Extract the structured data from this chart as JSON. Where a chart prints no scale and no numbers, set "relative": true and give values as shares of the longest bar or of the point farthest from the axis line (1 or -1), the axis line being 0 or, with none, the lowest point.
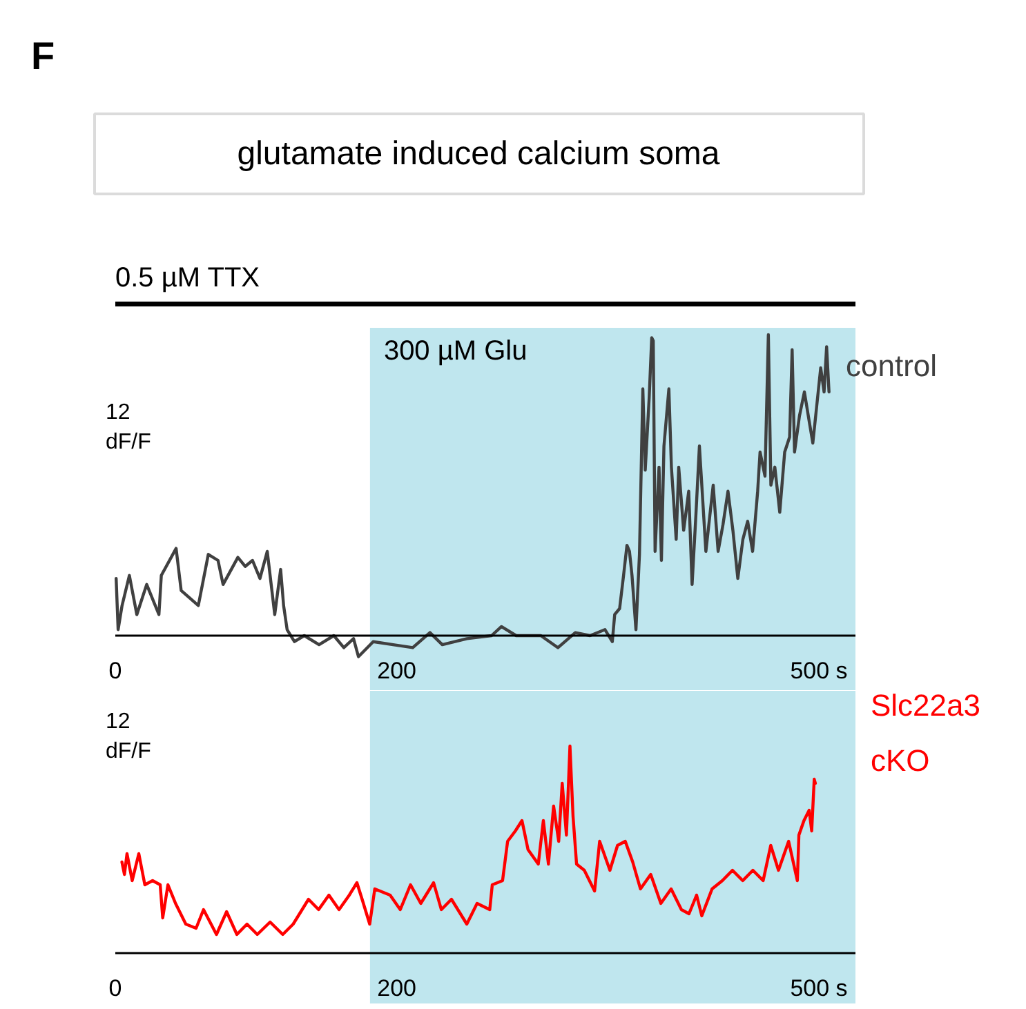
{
  "chart_data": [
    {
      "type": "line",
      "title": "glutamate induced calcium soma",
      "relative": true,
      "xlim": [
        0,
        526
      ],
      "xticks": [
        0,
        200,
        {
          "value": 500,
          "label": "500 s"
        }
      ],
      "annotations": [
        "F",
        "12 dF/F",
        "0.5 µM TTX"
      ],
      "bands": [
        {
          "axis": "x",
          "from": 181,
          "to": 526,
          "label": "300 µM Glu",
          "color": "#bfe6ee"
        }
      ],
      "series": [
        {
          "name": "control",
          "color": "#404040",
          "x": [
            0.6,
            2.0,
            4.8,
            10.0,
            15.3,
            22.3,
            31.0,
            32.7,
            43.2,
            46.8,
            59.0,
            66.1,
            73.0,
            76.6,
            87.1,
            92.3,
            97.5,
            102.8,
            108.0,
            113.3,
            117.5,
            119.6,
            122.1,
            127.3,
            134.3,
            144.8,
            155.3,
            162.4,
            169.3,
            172.8,
            183.3,
            197.4,
            211.4,
            223.6,
            232.4,
            249.9,
            267.4,
            274.4,
            284.9,
            302.4,
            314.6,
            326.9,
            337.4,
            348.0,
            353.2,
            354.9,
            358.4,
            361.2,
            363.6,
            365.4,
            367.2,
            370.0,
            372.5,
            374.9,
            376.6,
            379.4,
            381.2,
            382.3,
            383.6,
            386.4,
            388.1,
            389.9,
            393.4,
            395.2,
            398.6,
            400.4,
            403.9,
            407.5,
            409.9,
            412.6,
            415.1,
            419.7,
            424.9,
            428.4,
            431.9,
            435.4,
            438.9,
            442.4,
            446.0,
            449.4,
            452.9,
            456.5,
            458.2,
            461.7,
            464.1,
            465.9,
            468.7,
            472.2,
            475.7,
            479.2,
            481.0,
            482.7,
            486.2,
            489.7,
            493.2,
            495.7,
            498.4,
            501.3,
            503.7,
            505.5,
            507.2
          ],
          "values": [
            0.19,
            0.02,
            0.1,
            0.2,
            0.07,
            0.17,
            0.07,
            0.2,
            0.29,
            0.15,
            0.1,
            0.27,
            0.25,
            0.17,
            0.26,
            0.23,
            0.25,
            0.19,
            0.28,
            0.07,
            0.22,
            0.1,
            0.02,
            -0.02,
            0.0,
            -0.03,
            0.0,
            -0.04,
            -0.01,
            -0.07,
            -0.02,
            -0.03,
            -0.04,
            0.01,
            -0.03,
            -0.01,
            0.0,
            0.03,
            0.0,
            0.0,
            -0.04,
            0.01,
            0.0,
            0.02,
            -0.02,
            0.07,
            0.09,
            0.2,
            0.3,
            0.28,
            0.2,
            0.02,
            0.27,
            0.82,
            0.55,
            0.79,
            0.99,
            0.98,
            0.28,
            0.56,
            0.25,
            0.63,
            0.82,
            0.56,
            0.32,
            0.56,
            0.35,
            0.48,
            0.17,
            0.4,
            0.63,
            0.28,
            0.5,
            0.28,
            0.37,
            0.48,
            0.35,
            0.19,
            0.32,
            0.38,
            0.28,
            0.48,
            0.61,
            0.53,
            1.0,
            0.5,
            0.56,
            0.41,
            0.61,
            0.66,
            0.95,
            0.61,
            0.73,
            0.81,
            0.71,
            0.64,
            0.76,
            0.89,
            0.81,
            0.96,
            0.81
          ]
        }
      ]
    },
    {
      "type": "line",
      "relative": true,
      "xlim": [
        0,
        526
      ],
      "xticks": [
        0,
        200,
        {
          "value": 500,
          "label": "500 s"
        }
      ],
      "annotations": [
        "12 dF/F"
      ],
      "bands": [
        {
          "axis": "x",
          "from": 181,
          "to": 526,
          "label": null,
          "color": "#bfe6ee"
        }
      ],
      "series": [
        {
          "name": "Slc22a3 cKO",
          "color": "#ff0000",
          "x": [
            4.7,
            6.5,
            8.3,
            12.0,
            16.7,
            21.0,
            26.5,
            31.9,
            33.7,
            37.4,
            42.8,
            50.1,
            57.4,
            62.7,
            71.9,
            79.1,
            86.4,
            93.6,
            100.9,
            110.0,
            119.0,
            126.4,
            137.3,
            144.5,
            151.8,
            159.0,
            166.3,
            171.7,
            175.4,
            180.8,
            184.4,
            195.3,
            202.5,
            209.8,
            217.1,
            226.2,
            231.7,
            238.9,
            249.8,
            257.1,
            266.1,
            267.9,
            275.2,
            278.8,
            284.3,
            289.0,
            293.3,
            300.6,
            304.2,
            307.8,
            311.5,
            315.1,
            317.6,
            320.6,
            323.1,
            325.3,
            327.8,
            333.3,
            340.6,
            344.2,
            351.5,
            356.9,
            362.4,
            367.7,
            373.2,
            380.5,
            387.7,
            395.0,
            402.3,
            407.7,
            413.1,
            416.8,
            424.1,
            431.4,
            438.6,
            445.9,
            453.1,
            460.4,
            465.8,
            471.3,
            478.5,
            484.7,
            485.8,
            489.4,
            493.1,
            494.9,
            496.7,
            497.5
          ],
          "values": [
            0.44,
            0.38,
            0.48,
            0.35,
            0.48,
            0.33,
            0.35,
            0.33,
            0.17,
            0.33,
            0.24,
            0.14,
            0.12,
            0.21,
            0.09,
            0.2,
            0.09,
            0.14,
            0.09,
            0.15,
            0.09,
            0.14,
            0.26,
            0.21,
            0.28,
            0.21,
            0.28,
            0.34,
            0.26,
            0.14,
            0.31,
            0.28,
            0.21,
            0.33,
            0.24,
            0.34,
            0.21,
            0.26,
            0.14,
            0.24,
            0.21,
            0.33,
            0.35,
            0.54,
            0.59,
            0.64,
            0.5,
            0.43,
            0.64,
            0.43,
            0.71,
            0.54,
            0.82,
            0.57,
            1.0,
            0.66,
            0.43,
            0.4,
            0.3,
            0.54,
            0.4,
            0.52,
            0.54,
            0.44,
            0.31,
            0.38,
            0.24,
            0.31,
            0.21,
            0.19,
            0.28,
            0.18,
            0.31,
            0.35,
            0.4,
            0.35,
            0.4,
            0.35,
            0.52,
            0.4,
            0.54,
            0.35,
            0.57,
            0.64,
            0.69,
            0.59,
            0.84,
            0.82
          ]
        }
      ]
    }
  ]
}
